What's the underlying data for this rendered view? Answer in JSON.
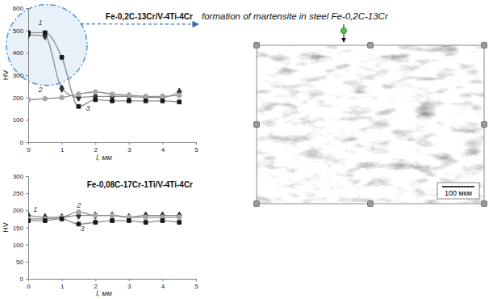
{
  "chart_data": [
    {
      "type": "line",
      "title": "Fe-0,2C-13Cr/V-4Ti-4Cr",
      "x_label": "l, мм",
      "y_label": "HV",
      "annotation": "formation of martensite in steel Fe-0,2C-13Cr",
      "x": [
        0,
        0.5,
        1,
        1.5,
        2,
        2.5,
        3,
        3.5,
        4,
        4.5
      ],
      "series": [
        {
          "name": "1",
          "color": "#333333",
          "marker": "diamond",
          "line_style": "solid",
          "values": [
            480,
            475,
            240,
            200,
            205,
            205,
            205,
            200,
            200,
            225
          ]
        },
        {
          "name": "2",
          "color": "#a6a6a6",
          "marker": "circle",
          "line_style": "solid",
          "values": [
            190,
            195,
            200,
            215,
            225,
            215,
            210,
            205,
            205,
            210
          ]
        },
        {
          "name": "3",
          "color": "#1a1a1a",
          "marker": "square",
          "line_style": "solid",
          "values": [
            490,
            490,
            380,
            160,
            190,
            185,
            185,
            185,
            185,
            180
          ]
        }
      ],
      "xlim": [
        0,
        5
      ],
      "xticks": [
        0,
        1,
        2,
        3,
        4,
        5
      ],
      "ylim": [
        0,
        600
      ],
      "yticks": [
        0,
        100,
        200,
        300,
        400,
        500,
        600
      ],
      "grid": false
    },
    {
      "type": "line",
      "title": "Fe-0,08C-17Cr-1Ti/V-4Ti-4Cr",
      "x_label": "l, мм",
      "y_label": "HV",
      "x": [
        0,
        0.5,
        1,
        1.5,
        2,
        2.5,
        3,
        3.5,
        4,
        4.5
      ],
      "series": [
        {
          "name": "1",
          "color": "#333333",
          "marker": "diamond",
          "line_style": "solid",
          "values": [
            185,
            180,
            180,
            185,
            185,
            185,
            180,
            185,
            185,
            185
          ]
        },
        {
          "name": "2",
          "color": "#a6a6a6",
          "marker": "circle",
          "line_style": "solid",
          "values": [
            175,
            175,
            180,
            195,
            185,
            185,
            180,
            180,
            180,
            180
          ]
        },
        {
          "name": "3",
          "color": "#1a1a1a",
          "marker": "square",
          "line_style": "solid",
          "values": [
            170,
            170,
            175,
            160,
            165,
            170,
            170,
            165,
            170,
            165
          ]
        }
      ],
      "xlim": [
        0,
        5
      ],
      "xticks": [
        0,
        1,
        2,
        3,
        4,
        5
      ],
      "ylim": [
        0,
        300
      ],
      "yticks": [
        0,
        50,
        100,
        150,
        200,
        250,
        300
      ],
      "grid": false
    }
  ],
  "micrograph": {
    "scale_bar": "100 мкм"
  }
}
